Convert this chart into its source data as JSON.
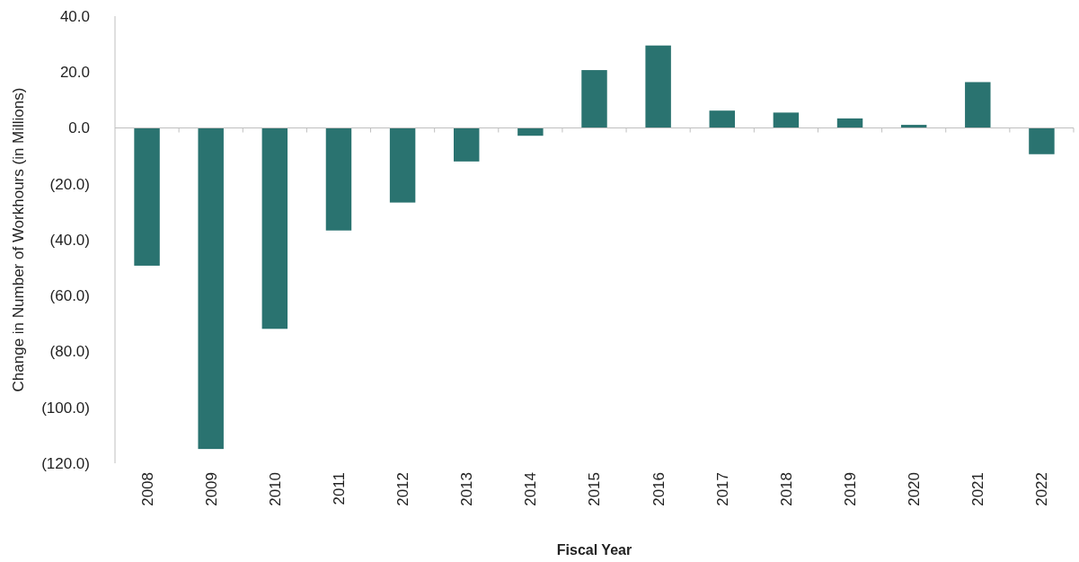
{
  "chart_data": {
    "type": "bar",
    "xlabel": "Fiscal Year",
    "ylabel": "Change in Number of Workhours (in Millions)",
    "categories": [
      "2008",
      "2009",
      "2010",
      "2011",
      "2012",
      "2013",
      "2014",
      "2015",
      "2016",
      "2017",
      "2018",
      "2019",
      "2020",
      "2021",
      "2022"
    ],
    "values": [
      -49.3,
      -114.9,
      -71.9,
      -36.7,
      -26.7,
      -12.0,
      -2.8,
      20.7,
      29.5,
      6.2,
      5.5,
      3.4,
      1.1,
      16.4,
      -9.4
    ],
    "color": "#2a7370",
    "ylim": [
      -120,
      40
    ],
    "yticks": [
      {
        "value": 40,
        "label": "40.0"
      },
      {
        "value": 20,
        "label": "20.0"
      },
      {
        "value": 0,
        "label": "0.0"
      },
      {
        "value": -20,
        "label": "(20.0)"
      },
      {
        "value": -40,
        "label": "(40.0)"
      },
      {
        "value": -60,
        "label": "(60.0)"
      },
      {
        "value": -80,
        "label": "(80.0)"
      },
      {
        "value": -100,
        "label": "(100.0)"
      },
      {
        "value": -120,
        "label": "(120.0)"
      }
    ]
  }
}
